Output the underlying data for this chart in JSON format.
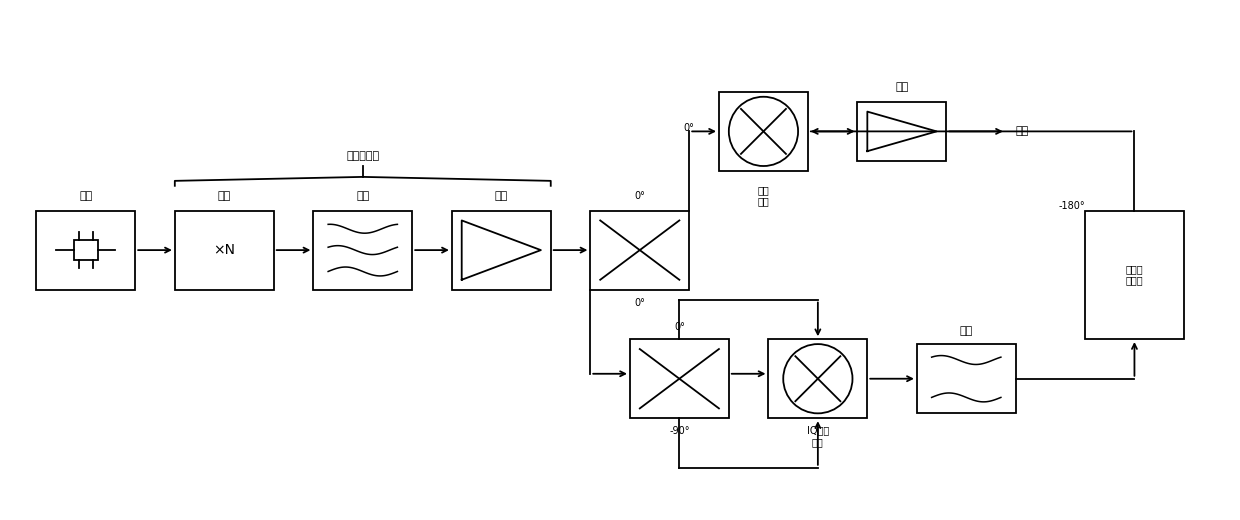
{
  "bg": "#ffffff",
  "lc": "#000000",
  "lw": 1.3,
  "figsize": [
    12.4,
    5.2
  ],
  "dpi": 100,
  "labels": {
    "jingzhen": "晶振",
    "pipin": "倍频",
    "lubo1": "滤波",
    "fangda1": "放大",
    "fangda2": "放大",
    "lubo2": "滤波",
    "shuchu": "输出",
    "tiaozhi": "调制\n电路",
    "IQ": "IQ解调\n电路",
    "xiangwei": "相位延\n时电路",
    "yiji": "一级或多级",
    "0d": "0°",
    "n90": "-90°",
    "n180": "-180°"
  }
}
